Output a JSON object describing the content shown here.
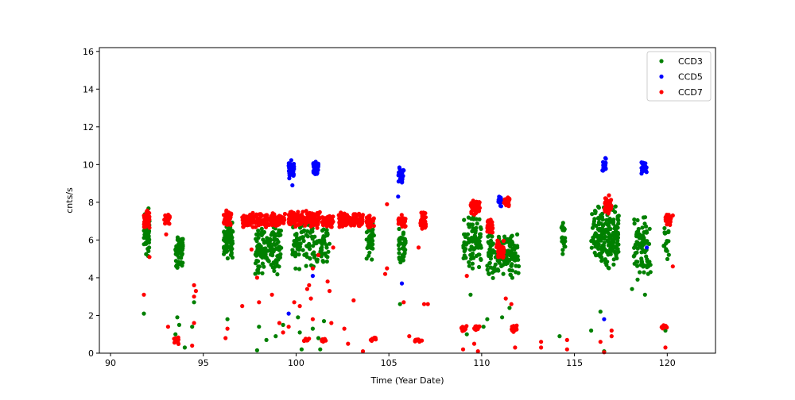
{
  "chart_data": {
    "type": "scatter",
    "title": "",
    "xlabel": "Time (Year Date)",
    "ylabel": "cnts/s",
    "xlim": [
      89.4,
      122.6
    ],
    "ylim": [
      0,
      16.2
    ],
    "xticks": [
      90,
      95,
      100,
      105,
      110,
      115,
      120
    ],
    "xtick_labels": [
      "90",
      "95",
      "100",
      "105",
      "110",
      "115",
      "120"
    ],
    "yticks": [
      0,
      2,
      4,
      6,
      8,
      10,
      12,
      14,
      16
    ],
    "ytick_labels": [
      "0",
      "2",
      "4",
      "6",
      "8",
      "10",
      "12",
      "14",
      "16"
    ],
    "grid": false,
    "legend_position": "top-right",
    "series": [
      {
        "name": "CCD3",
        "color": "#008000",
        "clusters": [
          {
            "x": [
              91.8,
              92.1
            ],
            "y": [
              4.9,
              8.0
            ],
            "n": 70
          },
          {
            "x": [
              93.5,
              93.9
            ],
            "y": [
              4.3,
              6.5
            ],
            "n": 55
          },
          {
            "x": [
              96.1,
              96.6
            ],
            "y": [
              4.9,
              7.0
            ],
            "n": 60
          },
          {
            "x": [
              97.8,
              99.2
            ],
            "y": [
              4.1,
              6.9
            ],
            "n": 140
          },
          {
            "x": [
              99.8,
              101.8
            ],
            "y": [
              4.3,
              7.4
            ],
            "n": 130
          },
          {
            "x": [
              103.8,
              104.2
            ],
            "y": [
              4.8,
              7.0
            ],
            "n": 45
          },
          {
            "x": [
              105.5,
              105.9
            ],
            "y": [
              4.7,
              6.8
            ],
            "n": 40
          },
          {
            "x": [
              109.0,
              110.0
            ],
            "y": [
              4.4,
              7.5
            ],
            "n": 90
          },
          {
            "x": [
              110.3,
              112.0
            ],
            "y": [
              3.9,
              6.5
            ],
            "n": 150
          },
          {
            "x": [
              114.3,
              114.5
            ],
            "y": [
              5.0,
              7.1
            ],
            "n": 20
          },
          {
            "x": [
              115.9,
              117.4
            ],
            "y": [
              4.3,
              8.0
            ],
            "n": 190
          },
          {
            "x": [
              118.2,
              119.1
            ],
            "y": [
              3.9,
              7.5
            ],
            "n": 80
          },
          {
            "x": [
              119.8,
              120.1
            ],
            "y": [
              4.7,
              6.8
            ],
            "n": 18
          }
        ],
        "points": [
          {
            "x": 91.8,
            "y": 2.1
          },
          {
            "x": 93.6,
            "y": 1.9
          },
          {
            "x": 93.7,
            "y": 1.5
          },
          {
            "x": 93.5,
            "y": 1.0
          },
          {
            "x": 94.0,
            "y": 0.3
          },
          {
            "x": 94.4,
            "y": 1.4
          },
          {
            "x": 94.5,
            "y": 2.7
          },
          {
            "x": 96.3,
            "y": 1.8
          },
          {
            "x": 97.9,
            "y": 0.15
          },
          {
            "x": 98.0,
            "y": 1.4
          },
          {
            "x": 98.4,
            "y": 0.7
          },
          {
            "x": 98.9,
            "y": 0.9
          },
          {
            "x": 99.3,
            "y": 1.5
          },
          {
            "x": 100.1,
            "y": 1.9
          },
          {
            "x": 100.2,
            "y": 1.1
          },
          {
            "x": 100.3,
            "y": 0.2
          },
          {
            "x": 100.9,
            "y": 1.3
          },
          {
            "x": 101.2,
            "y": 0.8
          },
          {
            "x": 101.3,
            "y": 0.2
          },
          {
            "x": 101.5,
            "y": 1.7
          },
          {
            "x": 105.6,
            "y": 2.6
          },
          {
            "x": 109.2,
            "y": 1.0
          },
          {
            "x": 109.4,
            "y": 3.1
          },
          {
            "x": 110.1,
            "y": 1.4
          },
          {
            "x": 110.3,
            "y": 1.8
          },
          {
            "x": 111.1,
            "y": 1.9
          },
          {
            "x": 111.5,
            "y": 2.4
          },
          {
            "x": 114.2,
            "y": 0.9
          },
          {
            "x": 115.9,
            "y": 1.2
          },
          {
            "x": 116.4,
            "y": 2.2
          },
          {
            "x": 116.6,
            "y": 0.1
          },
          {
            "x": 118.1,
            "y": 3.4
          },
          {
            "x": 118.4,
            "y": 3.9
          },
          {
            "x": 118.8,
            "y": 3.1
          },
          {
            "x": 119.1,
            "y": 4.3
          },
          {
            "x": 119.9,
            "y": 1.2
          }
        ]
      },
      {
        "name": "CCD5",
        "color": "#0000ff",
        "clusters": [
          {
            "x": [
              99.6,
              99.9
            ],
            "y": [
              9.2,
              10.3
            ],
            "n": 40
          },
          {
            "x": [
              100.9,
              101.2
            ],
            "y": [
              9.4,
              10.2
            ],
            "n": 35
          },
          {
            "x": [
              105.5,
              105.8
            ],
            "y": [
              9.0,
              9.9
            ],
            "n": 30
          },
          {
            "x": [
              110.9,
              111.1
            ],
            "y": [
              7.7,
              8.4
            ],
            "n": 25
          },
          {
            "x": [
              116.5,
              116.7
            ],
            "y": [
              9.5,
              10.4
            ],
            "n": 25
          },
          {
            "x": [
              118.6,
              118.9
            ],
            "y": [
              9.4,
              10.3
            ],
            "n": 25
          }
        ],
        "points": [
          {
            "x": 99.8,
            "y": 8.9
          },
          {
            "x": 105.5,
            "y": 8.3
          },
          {
            "x": 105.7,
            "y": 3.7
          },
          {
            "x": 100.9,
            "y": 4.1
          },
          {
            "x": 99.6,
            "y": 2.1
          },
          {
            "x": 116.6,
            "y": 1.8
          },
          {
            "x": 118.9,
            "y": 5.6
          }
        ]
      },
      {
        "name": "CCD7",
        "color": "#ff0000",
        "clusters": [
          {
            "x": [
              91.8,
              92.1
            ],
            "y": [
              6.6,
              7.6
            ],
            "n": 55
          },
          {
            "x": [
              92.9,
              93.2
            ],
            "y": [
              6.8,
              7.4
            ],
            "n": 30
          },
          {
            "x": [
              96.1,
              96.5
            ],
            "y": [
              6.7,
              7.7
            ],
            "n": 35
          },
          {
            "x": [
              97.1,
              99.4
            ],
            "y": [
              6.6,
              7.5
            ],
            "n": 150
          },
          {
            "x": [
              99.6,
              101.3
            ],
            "y": [
              6.6,
              7.6
            ],
            "n": 130
          },
          {
            "x": [
              101.4,
              102.0
            ],
            "y": [
              6.6,
              7.4
            ],
            "n": 40
          },
          {
            "x": [
              102.3,
              103.6
            ],
            "y": [
              6.6,
              7.5
            ],
            "n": 110
          },
          {
            "x": [
              103.8,
              104.2
            ],
            "y": [
              6.6,
              7.4
            ],
            "n": 35
          },
          {
            "x": [
              105.5,
              105.9
            ],
            "y": [
              6.6,
              7.4
            ],
            "n": 30
          },
          {
            "x": [
              106.7,
              107.0
            ],
            "y": [
              6.5,
              7.5
            ],
            "n": 35
          },
          {
            "x": [
              109.4,
              109.9
            ],
            "y": [
              7.3,
              8.1
            ],
            "n": 50
          },
          {
            "x": [
              110.3,
              110.6
            ],
            "y": [
              6.3,
              7.2
            ],
            "n": 25
          },
          {
            "x": [
              110.8,
              111.2
            ],
            "y": [
              5.0,
              6.1
            ],
            "n": 45
          },
          {
            "x": [
              111.2,
              111.5
            ],
            "y": [
              7.7,
              8.3
            ],
            "n": 25
          },
          {
            "x": [
              116.6,
              117.0
            ],
            "y": [
              7.4,
              8.4
            ],
            "n": 40
          },
          {
            "x": [
              119.9,
              120.2
            ],
            "y": [
              6.7,
              7.4
            ],
            "n": 30
          },
          {
            "x": [
              93.4,
              93.7
            ],
            "y": [
              0.4,
              0.9
            ],
            "n": 14
          },
          {
            "x": [
              100.4,
              100.7
            ],
            "y": [
              0.6,
              0.8
            ],
            "n": 10
          },
          {
            "x": [
              101.3,
              101.6
            ],
            "y": [
              0.6,
              0.8
            ],
            "n": 10
          },
          {
            "x": [
              104.0,
              104.3
            ],
            "y": [
              0.6,
              0.9
            ],
            "n": 10
          },
          {
            "x": [
              106.4,
              106.8
            ],
            "y": [
              0.6,
              0.8
            ],
            "n": 14
          },
          {
            "x": [
              108.9,
              109.2
            ],
            "y": [
              1.1,
              1.5
            ],
            "n": 16
          },
          {
            "x": [
              109.6,
              109.9
            ],
            "y": [
              1.2,
              1.5
            ],
            "n": 12
          },
          {
            "x": [
              111.6,
              111.9
            ],
            "y": [
              1.1,
              1.5
            ],
            "n": 16
          },
          {
            "x": [
              119.7,
              120.0
            ],
            "y": [
              1.2,
              1.5
            ],
            "n": 14
          }
        ],
        "points": [
          {
            "x": 91.8,
            "y": 3.1
          },
          {
            "x": 92.1,
            "y": 5.1
          },
          {
            "x": 93.0,
            "y": 6.3
          },
          {
            "x": 93.1,
            "y": 1.4
          },
          {
            "x": 94.5,
            "y": 3.0
          },
          {
            "x": 94.5,
            "y": 3.6
          },
          {
            "x": 94.6,
            "y": 3.3
          },
          {
            "x": 94.5,
            "y": 1.6
          },
          {
            "x": 94.4,
            "y": 0.4
          },
          {
            "x": 96.3,
            "y": 1.3
          },
          {
            "x": 96.2,
            "y": 0.8
          },
          {
            "x": 97.1,
            "y": 2.5
          },
          {
            "x": 97.6,
            "y": 5.5
          },
          {
            "x": 97.9,
            "y": 4.0
          },
          {
            "x": 98.0,
            "y": 2.7
          },
          {
            "x": 98.7,
            "y": 3.1
          },
          {
            "x": 99.1,
            "y": 1.6
          },
          {
            "x": 99.3,
            "y": 1.1
          },
          {
            "x": 99.6,
            "y": 1.4
          },
          {
            "x": 99.9,
            "y": 2.7
          },
          {
            "x": 100.2,
            "y": 2.5
          },
          {
            "x": 100.6,
            "y": 3.4
          },
          {
            "x": 100.7,
            "y": 3.6
          },
          {
            "x": 100.8,
            "y": 2.9
          },
          {
            "x": 100.9,
            "y": 4.5
          },
          {
            "x": 100.9,
            "y": 1.8
          },
          {
            "x": 101.2,
            "y": 5.2
          },
          {
            "x": 101.7,
            "y": 3.8
          },
          {
            "x": 101.8,
            "y": 3.3
          },
          {
            "x": 101.9,
            "y": 1.6
          },
          {
            "x": 102.0,
            "y": 5.6
          },
          {
            "x": 102.6,
            "y": 1.3
          },
          {
            "x": 102.8,
            "y": 0.5
          },
          {
            "x": 103.1,
            "y": 2.8
          },
          {
            "x": 103.6,
            "y": 0.1
          },
          {
            "x": 104.9,
            "y": 7.9
          },
          {
            "x": 104.9,
            "y": 4.5
          },
          {
            "x": 104.8,
            "y": 4.2
          },
          {
            "x": 105.8,
            "y": 2.7
          },
          {
            "x": 106.1,
            "y": 0.9
          },
          {
            "x": 106.9,
            "y": 2.6
          },
          {
            "x": 107.1,
            "y": 2.6
          },
          {
            "x": 106.6,
            "y": 5.6
          },
          {
            "x": 109.0,
            "y": 0.2
          },
          {
            "x": 109.2,
            "y": 4.1
          },
          {
            "x": 109.6,
            "y": 0.5
          },
          {
            "x": 109.8,
            "y": 0.1
          },
          {
            "x": 111.3,
            "y": 2.9
          },
          {
            "x": 111.6,
            "y": 2.6
          },
          {
            "x": 111.8,
            "y": 0.3
          },
          {
            "x": 113.2,
            "y": 0.6
          },
          {
            "x": 113.2,
            "y": 0.3
          },
          {
            "x": 114.6,
            "y": 0.7
          },
          {
            "x": 114.6,
            "y": 0.2
          },
          {
            "x": 116.4,
            "y": 0.6
          },
          {
            "x": 116.6,
            "y": 0.05
          },
          {
            "x": 117.0,
            "y": 1.2
          },
          {
            "x": 117.0,
            "y": 0.9
          },
          {
            "x": 119.9,
            "y": 0.3
          },
          {
            "x": 120.3,
            "y": 4.6
          },
          {
            "x": 120.3,
            "y": 7.3
          }
        ]
      }
    ]
  }
}
